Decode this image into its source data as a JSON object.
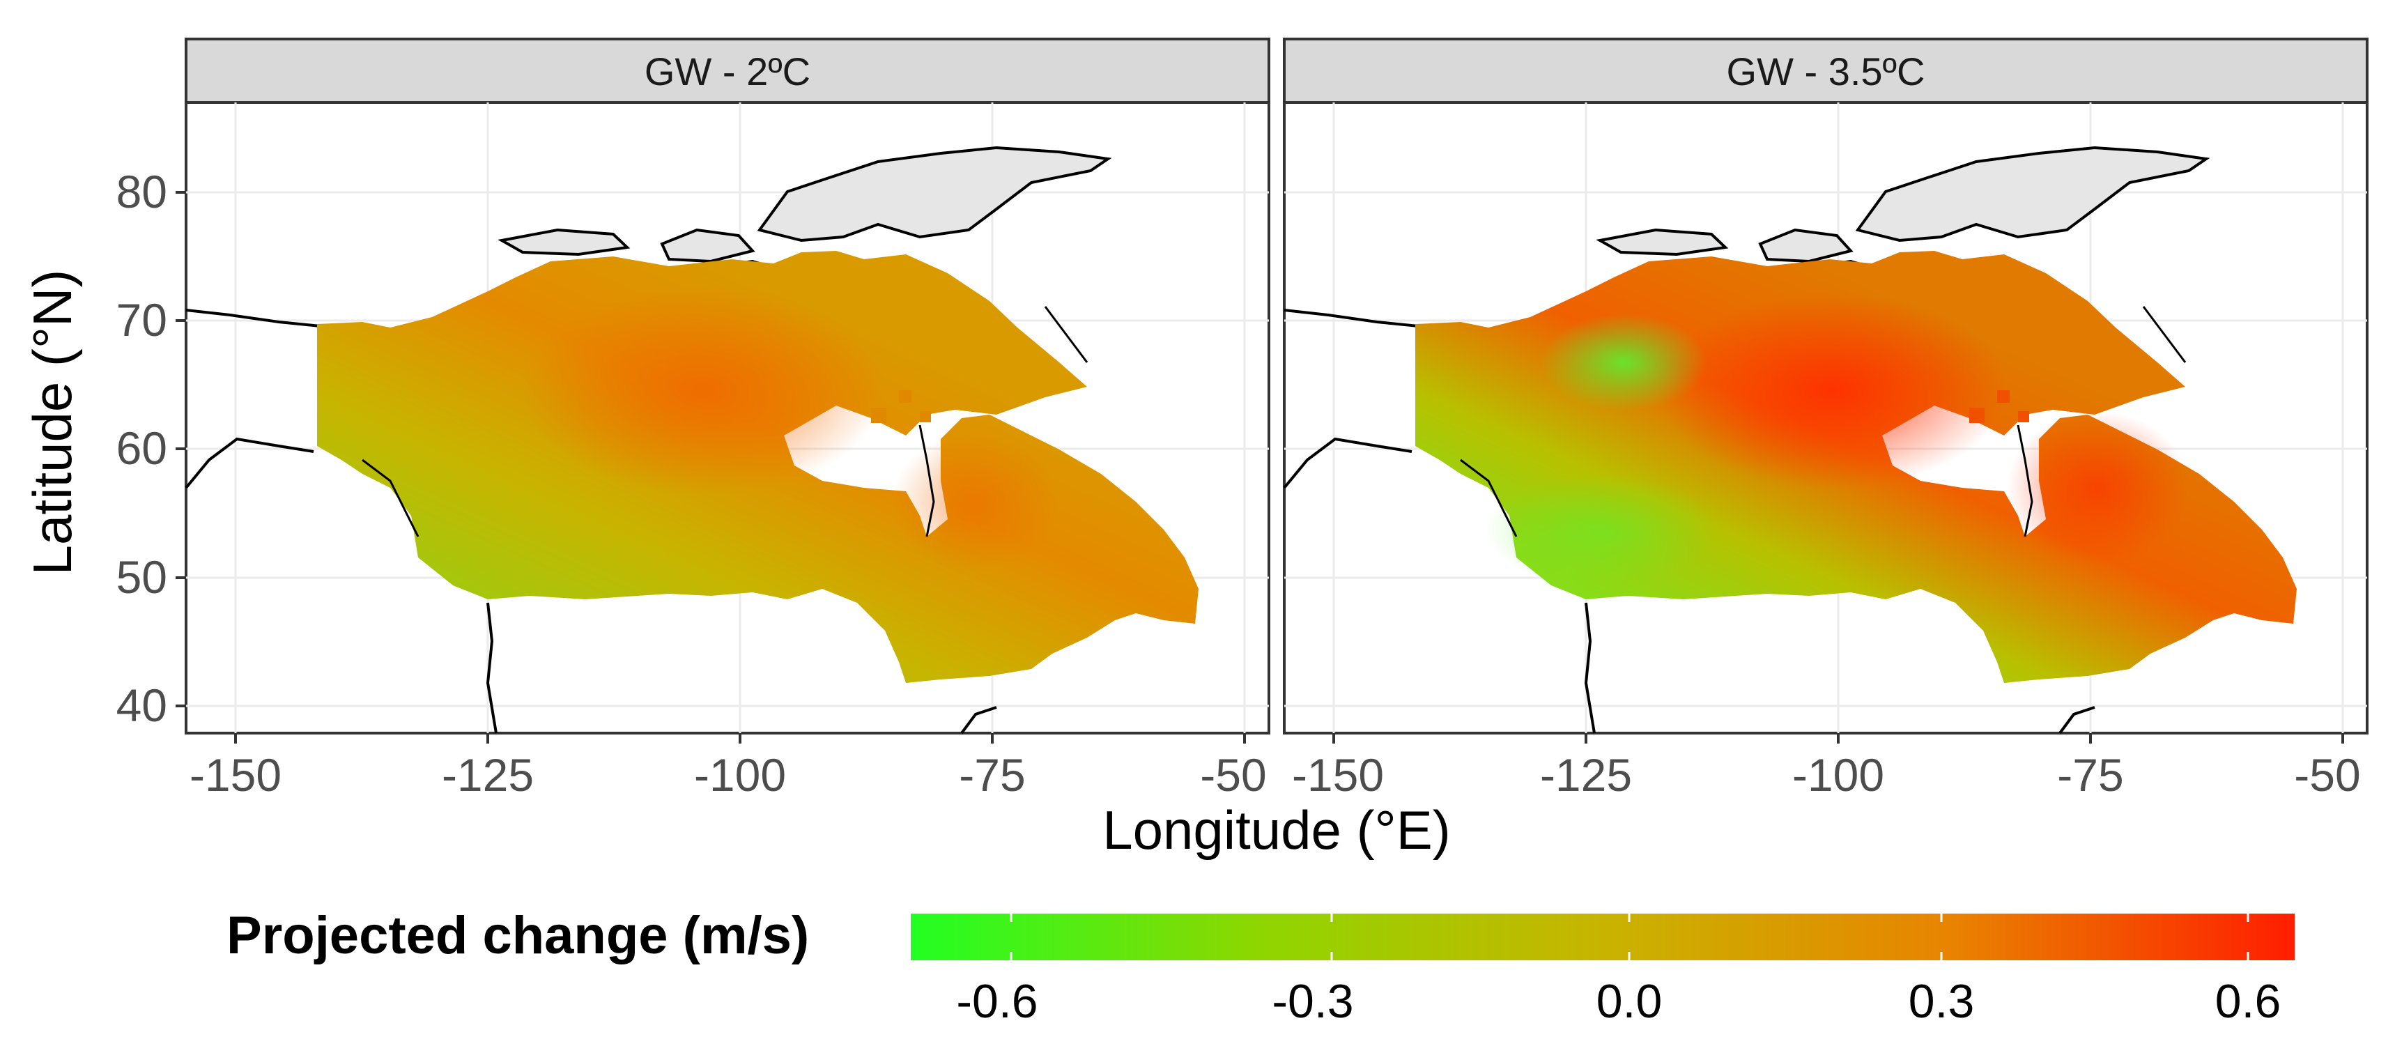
{
  "figure": {
    "xlabel": "Longitude (°E)",
    "ylabel": "Latitude (°N)",
    "x_ticks": [
      "-150",
      "-125",
      "-100",
      "-75",
      "-50"
    ],
    "y_ticks": [
      "80",
      "70",
      "60",
      "50",
      "40"
    ],
    "panels": [
      {
        "title": "GW - 2ºC"
      },
      {
        "title": "GW - 3.5ºC"
      }
    ]
  },
  "legend": {
    "title": "Projected change (m/s)",
    "ticks": [
      "-0.6",
      "-0.3",
      "0.0",
      "0.3",
      "0.6"
    ],
    "colors": {
      "low": "#22ff22",
      "mid": "#c8b400",
      "high": "#ff1e00"
    }
  },
  "colors": {
    "panel_background": "#ffffff",
    "grid": "#ebebeb",
    "strip_fill": "#d9d9d9",
    "strip_border": "#333333",
    "land_outline": "#000000",
    "arctic_land": "#e6e6e6"
  }
}
